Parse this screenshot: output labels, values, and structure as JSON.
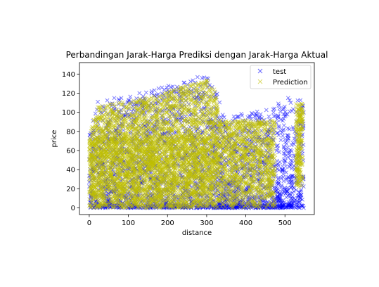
{
  "chart_data": {
    "type": "scatter",
    "title": "Perbandingan Jarak-Harga Prediksi dengan Jarak-Harga Aktual",
    "xlabel": "distance",
    "ylabel": "price",
    "xlim": [
      -25,
      575
    ],
    "ylim": [
      -7,
      152
    ],
    "xticks": [
      0,
      100,
      200,
      300,
      400,
      500
    ],
    "yticks": [
      0,
      20,
      40,
      60,
      80,
      100,
      120,
      140
    ],
    "marker": "x",
    "legend_position": "upper right",
    "series": [
      {
        "name": "test",
        "color": "#0000ff",
        "alpha": 0.5,
        "marker": "x"
      },
      {
        "name": "Prediction",
        "color": "#bfbf00",
        "alpha": 0.5,
        "marker": "x"
      }
    ]
  }
}
